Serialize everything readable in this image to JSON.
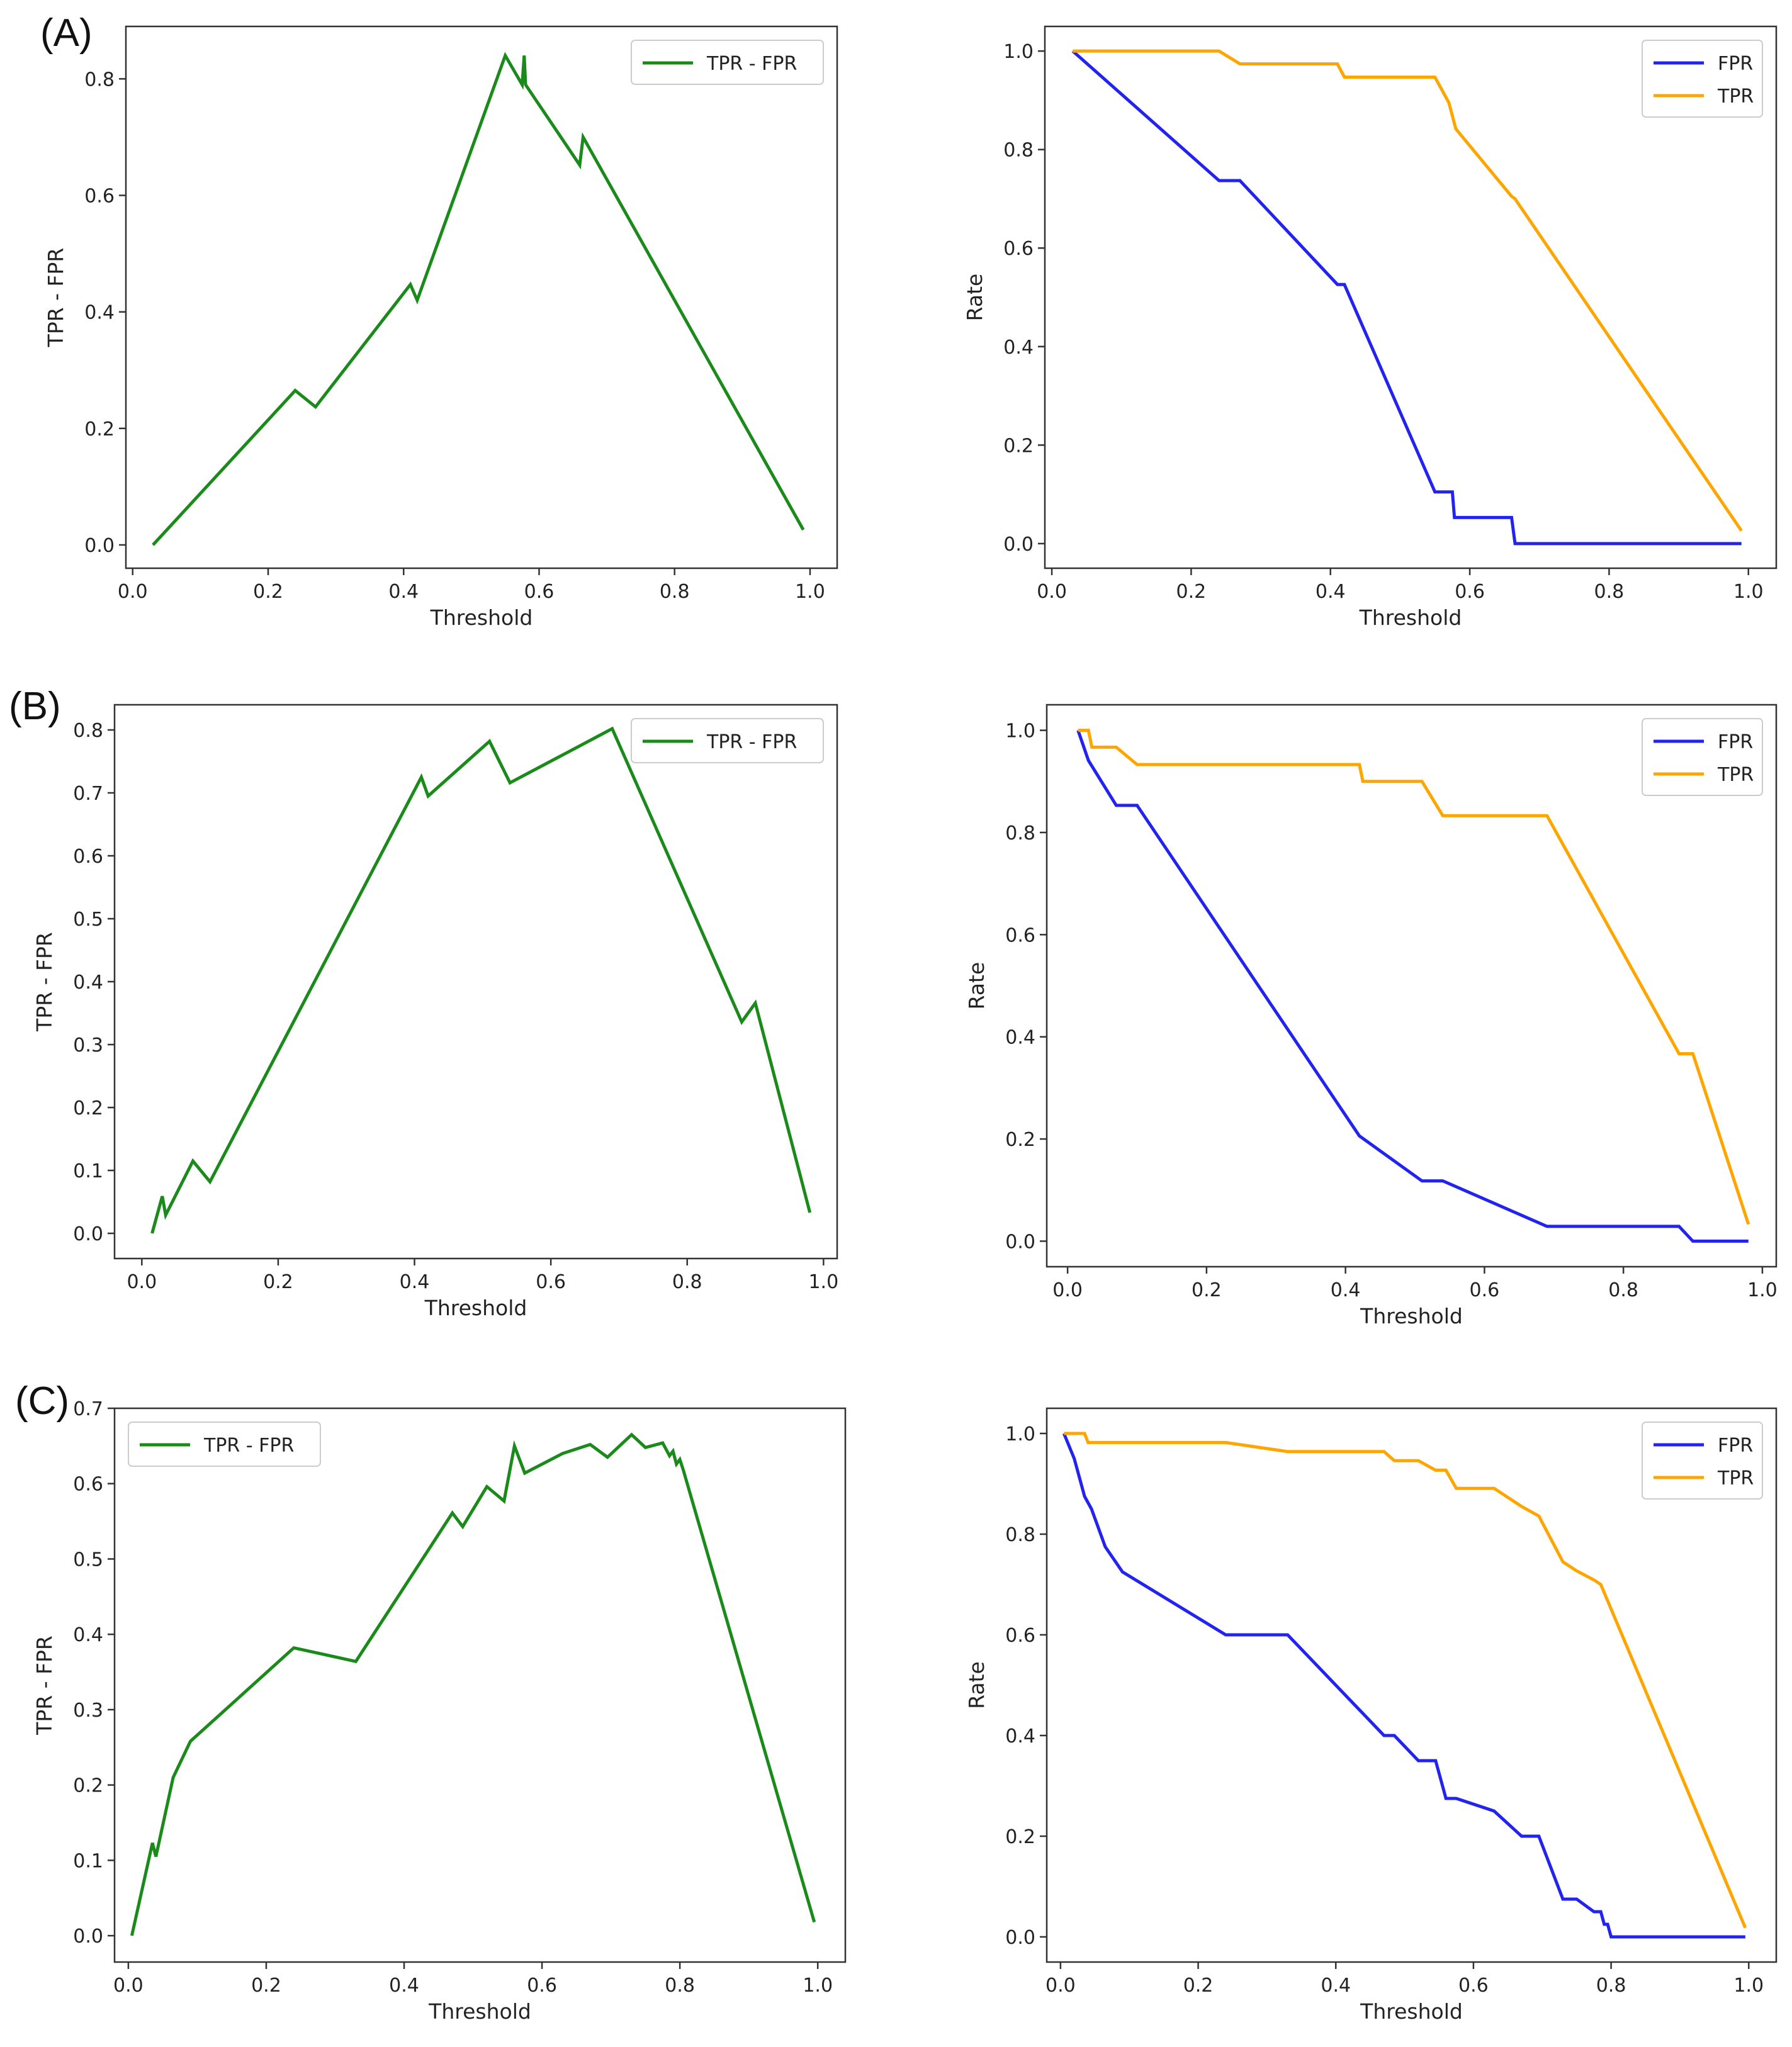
{
  "panel_labels": [
    "(A)",
    "(B)",
    "(C)"
  ],
  "colors": {
    "diff": "#1a8a1a",
    "fpr": "#2323f0",
    "tpr": "#ffa500",
    "axis": "#333333",
    "legend_border": "#cccccc"
  },
  "chart_data": [
    {
      "id": "A-diff",
      "type": "line",
      "xlabel": "Threshold",
      "ylabel": "TPR - FPR",
      "xlim": [
        -0.01,
        1.04
      ],
      "ylim": [
        -0.04,
        0.89
      ],
      "xticks": [
        0.0,
        0.2,
        0.4,
        0.6,
        0.8,
        1.0
      ],
      "xtick_labels": [
        "0.0",
        "0.2",
        "0.4",
        "0.6",
        "0.8",
        "1.0"
      ],
      "yticks": [
        0.0,
        0.2,
        0.4,
        0.6,
        0.8
      ],
      "ytick_labels": [
        "0.0",
        "0.2",
        "0.4",
        "0.6",
        "0.8"
      ],
      "legend": "top-right",
      "series": [
        {
          "name": "TPR - FPR",
          "color_key": "diff",
          "x": [
            0.03,
            0.24,
            0.27,
            0.41,
            0.42,
            0.55,
            0.575,
            0.578,
            0.58,
            0.66,
            0.665,
            0.99
          ],
          "y": [
            0.0,
            0.265,
            0.237,
            0.447,
            0.42,
            0.84,
            0.79,
            0.84,
            0.79,
            0.652,
            0.7,
            0.026
          ]
        }
      ]
    },
    {
      "id": "A-rates",
      "type": "line",
      "xlabel": "Threshold",
      "ylabel": "Rate",
      "xlim": [
        -0.01,
        1.04
      ],
      "ylim": [
        -0.05,
        1.05
      ],
      "xticks": [
        0.0,
        0.2,
        0.4,
        0.6,
        0.8,
        1.0
      ],
      "xtick_labels": [
        "0.0",
        "0.2",
        "0.4",
        "0.6",
        "0.8",
        "1.0"
      ],
      "yticks": [
        0.0,
        0.2,
        0.4,
        0.6,
        0.8,
        1.0
      ],
      "ytick_labels": [
        "0.0",
        "0.2",
        "0.4",
        "0.6",
        "0.8",
        "1.0"
      ],
      "legend": "top-right",
      "series": [
        {
          "name": "FPR",
          "color_key": "fpr",
          "x": [
            0.03,
            0.24,
            0.27,
            0.41,
            0.42,
            0.55,
            0.575,
            0.578,
            0.66,
            0.665,
            0.99
          ],
          "y": [
            1.0,
            0.737,
            0.737,
            0.526,
            0.526,
            0.105,
            0.105,
            0.053,
            0.053,
            0.0,
            0.0
          ]
        },
        {
          "name": "TPR",
          "color_key": "tpr",
          "x": [
            0.03,
            0.24,
            0.27,
            0.41,
            0.42,
            0.55,
            0.57,
            0.58,
            0.66,
            0.665,
            0.99
          ],
          "y": [
            1.0,
            1.0,
            0.974,
            0.974,
            0.947,
            0.947,
            0.895,
            0.842,
            0.705,
            0.7,
            0.026
          ]
        }
      ]
    },
    {
      "id": "B-diff",
      "type": "line",
      "xlabel": "Threshold",
      "ylabel": "TPR - FPR",
      "xlim": [
        -0.04,
        1.02
      ],
      "ylim": [
        -0.04,
        0.84
      ],
      "xticks": [
        0.0,
        0.2,
        0.4,
        0.6,
        0.8,
        1.0
      ],
      "xtick_labels": [
        "0.0",
        "0.2",
        "0.4",
        "0.6",
        "0.8",
        "1.0"
      ],
      "yticks": [
        0.0,
        0.1,
        0.2,
        0.3,
        0.4,
        0.5,
        0.6,
        0.7,
        0.8
      ],
      "ytick_labels": [
        "0.0",
        "0.1",
        "0.2",
        "0.3",
        "0.4",
        "0.5",
        "0.6",
        "0.7",
        "0.8"
      ],
      "legend": "top-right",
      "series": [
        {
          "name": "TPR - FPR",
          "color_key": "diff",
          "x": [
            0.015,
            0.03,
            0.035,
            0.075,
            0.1,
            0.41,
            0.42,
            0.51,
            0.54,
            0.69,
            0.88,
            0.9,
            0.98
          ],
          "y": [
            0.0,
            0.059,
            0.029,
            0.115,
            0.082,
            0.725,
            0.695,
            0.782,
            0.716,
            0.802,
            0.336,
            0.366,
            0.033
          ]
        }
      ]
    },
    {
      "id": "B-rates",
      "type": "line",
      "xlabel": "Threshold",
      "ylabel": "Rate",
      "xlim": [
        -0.03,
        1.02
      ],
      "ylim": [
        -0.05,
        1.05
      ],
      "xticks": [
        0.0,
        0.2,
        0.4,
        0.6,
        0.8,
        1.0
      ],
      "xtick_labels": [
        "0.0",
        "0.2",
        "0.4",
        "0.6",
        "0.8",
        "1.0"
      ],
      "yticks": [
        0.0,
        0.2,
        0.4,
        0.6,
        0.8,
        1.0
      ],
      "ytick_labels": [
        "0.0",
        "0.2",
        "0.4",
        "0.6",
        "0.8",
        "1.0"
      ],
      "legend": "top-right",
      "series": [
        {
          "name": "FPR",
          "color_key": "fpr",
          "x": [
            0.015,
            0.03,
            0.07,
            0.1,
            0.42,
            0.51,
            0.54,
            0.69,
            0.88,
            0.9,
            0.98
          ],
          "y": [
            1.0,
            0.941,
            0.853,
            0.853,
            0.206,
            0.118,
            0.118,
            0.029,
            0.029,
            0.0,
            0.0
          ]
        },
        {
          "name": "TPR",
          "color_key": "tpr",
          "x": [
            0.015,
            0.03,
            0.035,
            0.07,
            0.1,
            0.42,
            0.425,
            0.51,
            0.54,
            0.69,
            0.88,
            0.9,
            0.98
          ],
          "y": [
            1.0,
            1.0,
            0.967,
            0.967,
            0.933,
            0.933,
            0.9,
            0.9,
            0.833,
            0.833,
            0.367,
            0.367,
            0.033
          ]
        }
      ]
    },
    {
      "id": "C-diff",
      "type": "line",
      "xlabel": "Threshold",
      "ylabel": "TPR - FPR",
      "xlim": [
        -0.02,
        1.04
      ],
      "ylim": [
        -0.035,
        0.7
      ],
      "xticks": [
        0.0,
        0.2,
        0.4,
        0.6,
        0.8,
        1.0
      ],
      "xtick_labels": [
        "0.0",
        "0.2",
        "0.4",
        "0.6",
        "0.8",
        "1.0"
      ],
      "yticks": [
        0.0,
        0.1,
        0.2,
        0.3,
        0.4,
        0.5,
        0.6,
        0.7
      ],
      "ytick_labels": [
        "0.0",
        "0.1",
        "0.2",
        "0.3",
        "0.4",
        "0.5",
        "0.6",
        "0.7"
      ],
      "legend": "top-left",
      "series": [
        {
          "name": "TPR - FPR",
          "color_key": "diff",
          "x": [
            0.005,
            0.035,
            0.04,
            0.065,
            0.09,
            0.24,
            0.33,
            0.47,
            0.485,
            0.52,
            0.545,
            0.56,
            0.575,
            0.63,
            0.67,
            0.695,
            0.73,
            0.75,
            0.775,
            0.785,
            0.79,
            0.795,
            0.8,
            0.805,
            0.995
          ],
          "y": [
            0.0,
            0.123,
            0.105,
            0.21,
            0.258,
            0.382,
            0.364,
            0.561,
            0.543,
            0.596,
            0.577,
            0.65,
            0.614,
            0.64,
            0.652,
            0.635,
            0.665,
            0.648,
            0.654,
            0.637,
            0.643,
            0.626,
            0.632,
            0.618,
            0.018
          ]
        }
      ]
    },
    {
      "id": "C-rates",
      "type": "line",
      "xlabel": "Threshold",
      "ylabel": "Rate",
      "xlim": [
        -0.02,
        1.04
      ],
      "ylim": [
        -0.05,
        1.05
      ],
      "xticks": [
        0.0,
        0.2,
        0.4,
        0.6,
        0.8,
        1.0
      ],
      "xtick_labels": [
        "0.0",
        "0.2",
        "0.4",
        "0.6",
        "0.8",
        "1.0"
      ],
      "yticks": [
        0.0,
        0.2,
        0.4,
        0.6,
        0.8,
        1.0
      ],
      "ytick_labels": [
        "0.0",
        "0.2",
        "0.4",
        "0.6",
        "0.8",
        "1.0"
      ],
      "legend": "top-right",
      "series": [
        {
          "name": "FPR",
          "color_key": "fpr",
          "x": [
            0.005,
            0.02,
            0.035,
            0.045,
            0.065,
            0.09,
            0.24,
            0.33,
            0.47,
            0.485,
            0.52,
            0.545,
            0.56,
            0.575,
            0.63,
            0.67,
            0.695,
            0.73,
            0.75,
            0.775,
            0.785,
            0.79,
            0.795,
            0.8,
            0.805,
            0.995
          ],
          "y": [
            1.0,
            0.95,
            0.875,
            0.85,
            0.775,
            0.725,
            0.6,
            0.6,
            0.4,
            0.4,
            0.35,
            0.35,
            0.275,
            0.275,
            0.25,
            0.2,
            0.2,
            0.075,
            0.075,
            0.05,
            0.05,
            0.025,
            0.025,
            0.0,
            0.0,
            0.0
          ]
        },
        {
          "name": "TPR",
          "color_key": "tpr",
          "x": [
            0.005,
            0.035,
            0.04,
            0.24,
            0.33,
            0.47,
            0.485,
            0.52,
            0.545,
            0.56,
            0.575,
            0.63,
            0.67,
            0.695,
            0.73,
            0.75,
            0.775,
            0.785,
            0.995
          ],
          "y": [
            1.0,
            1.0,
            0.982,
            0.982,
            0.964,
            0.964,
            0.946,
            0.946,
            0.927,
            0.927,
            0.891,
            0.891,
            0.855,
            0.836,
            0.745,
            0.727,
            0.709,
            0.7,
            0.018
          ]
        }
      ]
    }
  ]
}
